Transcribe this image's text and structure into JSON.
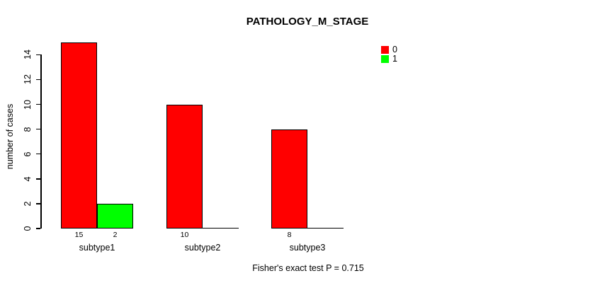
{
  "title": "PATHOLOGY_M_STAGE",
  "ylabel": "number of cases",
  "footnote": "Fisher's exact test P = 0.715",
  "legend": {
    "items": [
      {
        "label": "0",
        "color": "#FF0000"
      },
      {
        "label": "1",
        "color": "#00FF00"
      }
    ]
  },
  "chart_data": {
    "type": "bar",
    "title": "PATHOLOGY_M_STAGE",
    "categories": [
      "subtype1",
      "subtype2",
      "subtype3"
    ],
    "series": [
      {
        "name": "0",
        "color": "#FF0000",
        "values": [
          15,
          10,
          8
        ]
      },
      {
        "name": "1",
        "color": "#00FF00",
        "values": [
          2,
          0,
          0
        ]
      }
    ],
    "bar_value_labels_shown": [
      "15",
      "2",
      "10",
      "8"
    ],
    "xlabel": "",
    "ylabel": "number of cases",
    "yticks": [
      0,
      2,
      4,
      6,
      8,
      10,
      12,
      14
    ],
    "ylim": [
      0,
      15
    ],
    "grid": false,
    "legend_position": "top-right",
    "annotation": "Fisher's exact test P = 0.715"
  }
}
